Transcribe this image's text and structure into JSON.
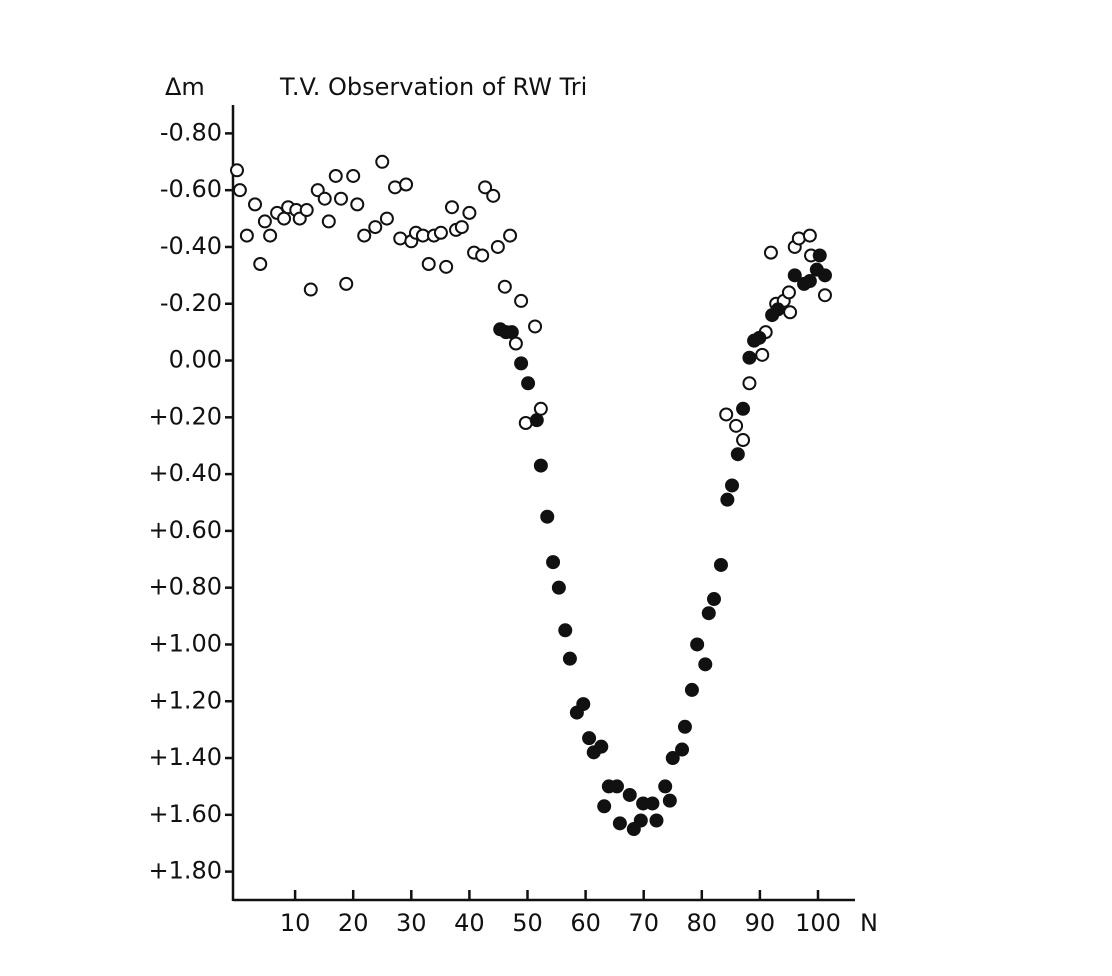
{
  "chart_data": {
    "type": "scatter",
    "title": "T.V. Observation of RW Tri",
    "y_label": "Δm",
    "x_label": "N",
    "xlim": [
      0,
      106
    ],
    "xticks": [
      10,
      20,
      30,
      40,
      50,
      60,
      70,
      80,
      90,
      100
    ],
    "ylim": [
      1.9,
      -0.9
    ],
    "yticks": [
      {
        "value": -0.8,
        "label": "-0.80"
      },
      {
        "value": -0.6,
        "label": "-0.60"
      },
      {
        "value": -0.4,
        "label": "-0.40"
      },
      {
        "value": -0.2,
        "label": "-0.20"
      },
      {
        "value": 0,
        "label": "0.00"
      },
      {
        "value": 0.2,
        "label": "+0.20"
      },
      {
        "value": 0.4,
        "label": "+0.40"
      },
      {
        "value": 0.6,
        "label": "+0.60"
      },
      {
        "value": 0.8,
        "label": "+0.80"
      },
      {
        "value": 1.0,
        "label": "+1.00"
      },
      {
        "value": 1.2,
        "label": "+1.20"
      },
      {
        "value": 1.4,
        "label": "+1.40"
      },
      {
        "value": 1.6,
        "label": "+1.60"
      },
      {
        "value": 1.8,
        "label": "+1.80"
      }
    ],
    "series": [
      {
        "marker": "open",
        "color": "#111",
        "x": [
          0,
          0.5,
          1.7,
          3.1,
          4.0,
          4.8,
          5.7,
          6.9,
          8.1,
          8.8,
          10.2,
          10.8,
          12.0,
          12.7,
          13.9,
          15.1,
          15.8,
          17.0,
          17.9,
          18.8,
          20.0,
          20.7,
          21.9,
          23.8,
          25.0,
          25.8,
          27.2,
          28.1,
          29.1,
          30.0,
          30.8,
          32.0,
          33.0,
          33.9,
          35.1,
          36.0,
          37.0,
          37.7,
          38.7,
          40.0,
          40.8,
          42.2,
          42.7,
          44.1,
          44.9,
          46.1,
          47.0,
          48.0,
          48.9,
          49.7,
          51.3,
          52.3,
          84.2,
          85.9,
          87.1,
          88.2,
          90.4,
          91.0,
          91.9,
          92.8,
          94.1,
          95.0,
          95.2,
          96.0,
          96.7,
          98.6,
          98.8,
          101.2
        ],
        "values": [
          -0.67,
          -0.6,
          -0.44,
          -0.55,
          -0.34,
          -0.49,
          -0.44,
          -0.52,
          -0.5,
          -0.54,
          -0.53,
          -0.5,
          -0.53,
          -0.25,
          -0.6,
          -0.57,
          -0.49,
          -0.65,
          -0.57,
          -0.27,
          -0.65,
          -0.55,
          -0.44,
          -0.47,
          -0.7,
          -0.5,
          -0.61,
          -0.43,
          -0.62,
          -0.42,
          -0.45,
          -0.44,
          -0.34,
          -0.44,
          -0.45,
          -0.33,
          -0.54,
          -0.46,
          -0.47,
          -0.52,
          -0.38,
          -0.37,
          -0.61,
          -0.58,
          -0.4,
          -0.26,
          -0.44,
          -0.06,
          -0.21,
          0.22,
          -0.12,
          0.17,
          0.19,
          0.23,
          0.28,
          0.08,
          -0.02,
          -0.1,
          -0.38,
          -0.2,
          -0.21,
          -0.24,
          -0.17,
          -0.4,
          -0.43,
          -0.44,
          -0.37,
          -0.23
        ]
      },
      {
        "marker": "filled",
        "color": "#111",
        "x": [
          45.3,
          46.3,
          47.3,
          48.9,
          50.1,
          51.6,
          52.3,
          53.4,
          54.4,
          55.4,
          56.5,
          57.3,
          58.5,
          59.6,
          60.6,
          61.4,
          62.7,
          63.2,
          64.0,
          65.4,
          65.9,
          67.6,
          68.3,
          69.5,
          69.9,
          71.5,
          72.2,
          73.7,
          74.5,
          75.0,
          76.6,
          77.1,
          78.3,
          79.2,
          80.6,
          81.2,
          82.1,
          83.3,
          84.4,
          85.2,
          86.2,
          87.1,
          88.2,
          89.0,
          89.9,
          92.1,
          93.1,
          96.0,
          97.6,
          98.6,
          99.8,
          100.3,
          101.2
        ],
        "values": [
          -0.11,
          -0.1,
          -0.1,
          0.01,
          0.08,
          0.21,
          0.37,
          0.55,
          0.71,
          0.8,
          0.95,
          1.05,
          1.24,
          1.21,
          1.33,
          1.38,
          1.36,
          1.57,
          1.5,
          1.5,
          1.63,
          1.53,
          1.65,
          1.62,
          1.56,
          1.56,
          1.62,
          1.5,
          1.55,
          1.4,
          1.37,
          1.29,
          1.16,
          1.0,
          1.07,
          0.89,
          0.84,
          0.72,
          0.49,
          0.44,
          0.33,
          0.17,
          -0.01,
          -0.07,
          -0.08,
          -0.16,
          -0.18,
          -0.3,
          -0.27,
          -0.28,
          -0.32,
          -0.37,
          -0.3
        ]
      }
    ]
  }
}
